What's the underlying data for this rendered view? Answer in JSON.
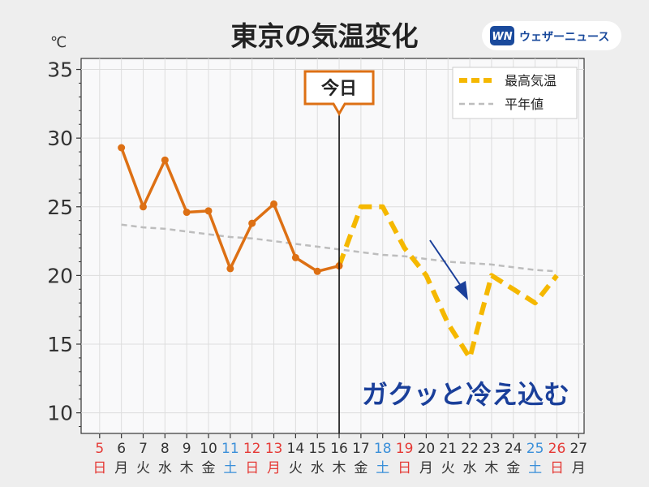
{
  "title": "東京の気温変化",
  "unit_label": "℃",
  "brand": {
    "mark": "WN",
    "name": "ウェザーニュース"
  },
  "today_label": "今日",
  "annotation": "ガクッと冷え込む",
  "colors": {
    "observed": "#dd7014",
    "forecast": "#f5b800",
    "normal": "#bdbdbd",
    "annotation": "#1a3f9a",
    "weekend_sun": "#e53935",
    "weekend_sat": "#3a8fd9",
    "weekday": "#333333",
    "brand_blue": "#1a4a9c"
  },
  "chart_data": {
    "type": "line",
    "x": [
      5,
      6,
      7,
      8,
      9,
      10,
      11,
      12,
      13,
      14,
      15,
      16,
      17,
      18,
      19,
      20,
      21,
      22,
      23,
      24,
      25,
      26,
      27
    ],
    "weekdays": [
      "日",
      "月",
      "火",
      "水",
      "木",
      "金",
      "土",
      "日",
      "月",
      "火",
      "水",
      "木",
      "金",
      "土",
      "日",
      "月",
      "火",
      "水",
      "木",
      "金",
      "土",
      "日",
      "月"
    ],
    "day_colors": [
      "sun",
      "wk",
      "wk",
      "wk",
      "wk",
      "wk",
      "sat",
      "sun",
      "sun",
      "wk",
      "wk",
      "wk",
      "wk",
      "sat",
      "sun",
      "wk",
      "wk",
      "wk",
      "wk",
      "wk",
      "sat",
      "sun",
      "wk"
    ],
    "ylim": [
      8.5,
      35.8
    ],
    "yticks": [
      10,
      15,
      20,
      25,
      30,
      35
    ],
    "grid": true,
    "legend_position": "top-right",
    "today_x": 16,
    "series": [
      {
        "name": "",
        "style": "observed",
        "x": [
          6,
          7,
          8,
          9,
          10,
          11,
          12,
          13,
          14,
          15,
          16
        ],
        "values": [
          29.3,
          25.0,
          28.4,
          24.6,
          24.7,
          20.5,
          23.8,
          25.2,
          21.3,
          20.3,
          20.7
        ]
      },
      {
        "name": "最高気温",
        "style": "forecast",
        "x": [
          16,
          17,
          18,
          19,
          20,
          21,
          22,
          23,
          24,
          25,
          26
        ],
        "values": [
          20.7,
          25.0,
          25.0,
          22.0,
          20.0,
          16.5,
          14.0,
          20.0,
          19.0,
          18.0,
          20.0
        ]
      },
      {
        "name": "平年値",
        "style": "normal",
        "x": [
          6,
          7,
          8,
          9,
          10,
          11,
          12,
          13,
          14,
          15,
          16,
          17,
          18,
          19,
          20,
          21,
          22,
          23,
          24,
          25,
          26
        ],
        "values": [
          23.7,
          23.5,
          23.4,
          23.2,
          23.0,
          22.8,
          22.7,
          22.5,
          22.3,
          22.1,
          21.9,
          21.7,
          21.5,
          21.4,
          21.2,
          21.0,
          20.9,
          20.8,
          20.6,
          20.4,
          20.3
        ]
      }
    ]
  }
}
